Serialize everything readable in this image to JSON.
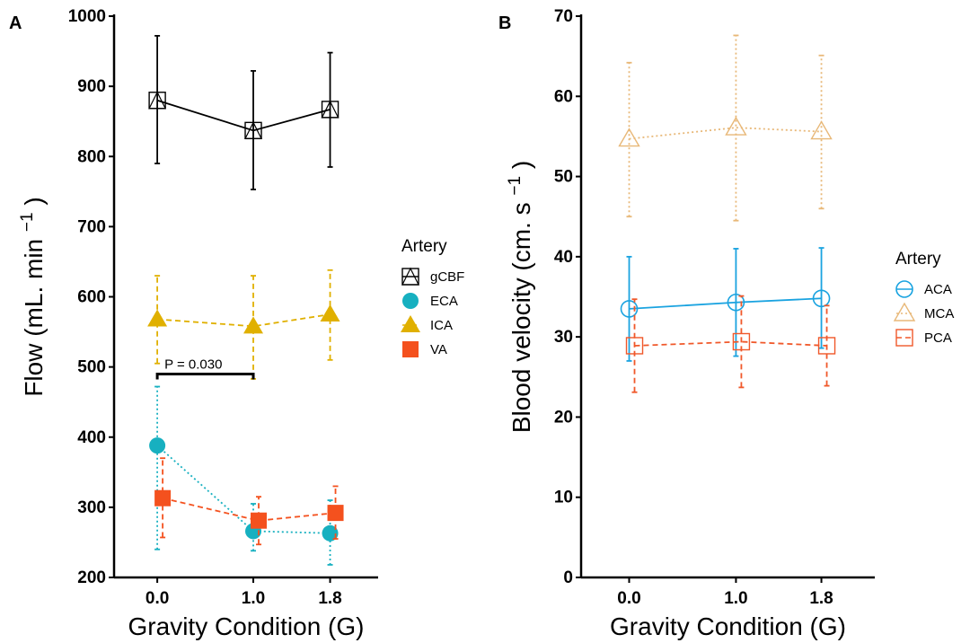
{
  "chart_data": [
    {
      "panel_label": "A",
      "type": "line",
      "xlabel": "Gravity Condition (G)",
      "ylabel": "Flow (mL. min⁻¹)",
      "ylabel_main": "Flow (mL. min",
      "ylabel_sup": "−1",
      "ylabel_close": ")",
      "x_tick_labels": [
        "0.0",
        "1.0",
        "1.8"
      ],
      "x": [
        0.0,
        1.0,
        1.8
      ],
      "xlim": [
        -0.45,
        2.3
      ],
      "ylim": [
        200,
        1000
      ],
      "y_ticks": [
        200,
        300,
        400,
        500,
        600,
        700,
        800,
        900,
        1000
      ],
      "grid": false,
      "legend": {
        "title": "Artery",
        "position": "right"
      },
      "series": [
        {
          "name": "gCBF",
          "color": "#000000",
          "linestyle": "solid",
          "marker": "square-triangle-open",
          "values": [
            880,
            837,
            867
          ],
          "err_low": [
            790,
            753,
            785
          ],
          "err_high": [
            972,
            922,
            948
          ]
        },
        {
          "name": "ECA",
          "color": "#17B0C0",
          "linestyle": "dotted",
          "marker": "circle-filled",
          "values": [
            388,
            266,
            263
          ],
          "err_low": [
            240,
            238,
            218
          ],
          "err_high": [
            472,
            305,
            310
          ]
        },
        {
          "name": "ICA",
          "color": "#E0B000",
          "linestyle": "dashed",
          "marker": "triangle-filled",
          "values": [
            568,
            558,
            575
          ],
          "err_low": [
            505,
            483,
            510
          ],
          "err_high": [
            630,
            630,
            638
          ]
        },
        {
          "name": "VA",
          "color": "#F4511E",
          "linestyle": "dashed",
          "marker": "square-filled",
          "values": [
            313,
            281,
            292
          ],
          "err_low": [
            257,
            247,
            255
          ],
          "err_high": [
            370,
            315,
            330
          ]
        }
      ],
      "annotations": [
        {
          "text": "P = 0.030",
          "x_from": 0.0,
          "x_to": 1.0,
          "y": 490
        }
      ]
    },
    {
      "panel_label": "B",
      "type": "line",
      "xlabel": "Gravity Condition (G)",
      "ylabel": "Blood velocity (cm. s⁻¹)",
      "ylabel_main": "Blood velocity (cm. s",
      "ylabel_sup": "−1",
      "ylabel_close": ")",
      "x_tick_labels": [
        "0.0",
        "1.0",
        "1.8"
      ],
      "x": [
        0.0,
        1.0,
        1.8
      ],
      "xlim": [
        -0.45,
        2.3
      ],
      "ylim": [
        0,
        70
      ],
      "y_ticks": [
        0,
        10,
        20,
        30,
        40,
        50,
        60,
        70
      ],
      "grid": false,
      "legend": {
        "title": "Artery",
        "position": "right"
      },
      "series": [
        {
          "name": "ACA",
          "color": "#1AA3E0",
          "linestyle": "solid",
          "marker": "circle-open",
          "values": [
            33.5,
            34.3,
            34.8
          ],
          "err_low": [
            27.0,
            27.6,
            28.6
          ],
          "err_high": [
            40.0,
            41.0,
            41.1
          ]
        },
        {
          "name": "MCA",
          "color": "#E8B878",
          "linestyle": "dotted",
          "marker": "triangle-open",
          "values": [
            54.7,
            56.1,
            55.6
          ],
          "err_low": [
            45.0,
            44.5,
            46.0
          ],
          "err_high": [
            64.2,
            67.6,
            65.1
          ]
        },
        {
          "name": "PCA",
          "color": "#F0582A",
          "linestyle": "dashed",
          "marker": "square-open",
          "values": [
            28.9,
            29.4,
            28.9
          ],
          "err_low": [
            23.1,
            23.7,
            23.9
          ],
          "err_high": [
            34.7,
            35.1,
            33.9
          ]
        }
      ]
    }
  ]
}
